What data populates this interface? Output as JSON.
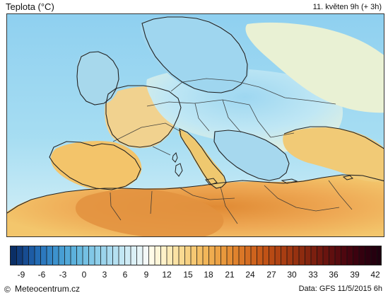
{
  "header": {
    "title": "Teplota (°C)",
    "valid_time": "11. květen  9h (+ 3h)"
  },
  "legend": {
    "tick_labels": [
      "-9",
      "-6",
      "-3",
      "0",
      "3",
      "6",
      "9",
      "12",
      "15",
      "18",
      "21",
      "24",
      "27",
      "30",
      "33",
      "36",
      "39",
      "42"
    ]
  },
  "footer": {
    "copyright_symbol": "©",
    "site": "Meteocentrum.cz",
    "data_source": "Data: GFS 11/5/2015 6h"
  },
  "colors": {
    "sea_blue": "#99d0ea",
    "deep_blue": "#5aa7d8",
    "cold_land": "#b8e4f4",
    "warm_land": "#f3c66c",
    "hot_land": "#dc8a3c",
    "coast_line": "#222222"
  }
}
